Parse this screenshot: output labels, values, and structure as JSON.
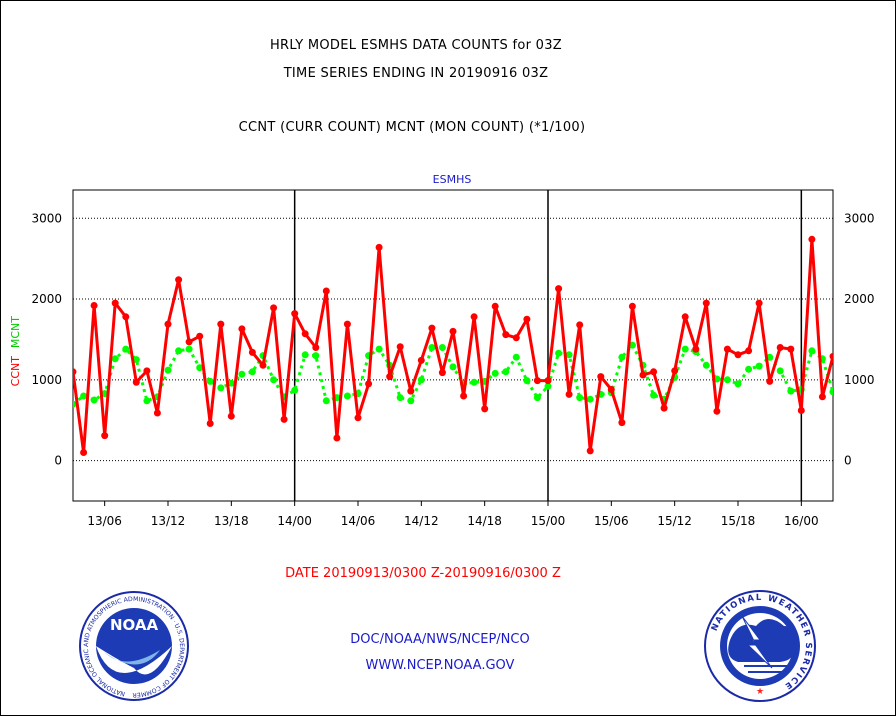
{
  "titles": {
    "line1": "HRLY MODEL ESMHS DATA COUNTS for 03Z",
    "line2": "TIME SERIES ENDING IN 20190916 03Z",
    "line3": "CCNT (CURR COUNT) MCNT (MON COUNT) (*1/100)"
  },
  "series_header": "ESMHS",
  "ylabels": {
    "ccnt": "CCNT",
    "mcnt": "MCNT"
  },
  "date_range": "DATE 20190913/0300 Z-20190916/0300 Z",
  "credits": {
    "line1": "DOC/NOAA/NWS/NCEP/NCO",
    "line2": "WWW.NCEP.NOAA.GOV"
  },
  "logos": {
    "left": {
      "name": "NOAA",
      "ring_text": "NATIONAL OCEANIC AND ATMOSPHERIC ADMINISTRATION · U.S. DEPARTMENT OF COMMERCE"
    },
    "right": {
      "ring_text": "NATIONAL WEATHER SERVICE"
    }
  },
  "colors": {
    "ccnt": "#ff0000",
    "mcnt": "#00ff00",
    "grid": "#000000",
    "text_blue": "#1a1acc"
  },
  "chart_data": {
    "type": "line",
    "title": "ESMHS",
    "xlabel": "DATE 20190913/0300 Z-20190916/0300 Z",
    "ylabel": "CCNT  MCNT",
    "x_start_hour": 3,
    "x_step_hours": 1,
    "xlim": [
      3,
      75
    ],
    "ylim": [
      -500,
      3350
    ],
    "yticks": [
      0,
      1000,
      2000,
      3000
    ],
    "xticks": [
      {
        "hour": 6,
        "label": "13/06"
      },
      {
        "hour": 12,
        "label": "13/12"
      },
      {
        "hour": 18,
        "label": "13/18"
      },
      {
        "hour": 24,
        "label": "14/00"
      },
      {
        "hour": 30,
        "label": "14/06"
      },
      {
        "hour": 36,
        "label": "14/12"
      },
      {
        "hour": 42,
        "label": "14/18"
      },
      {
        "hour": 48,
        "label": "15/00"
      },
      {
        "hour": 54,
        "label": "15/06"
      },
      {
        "hour": 60,
        "label": "15/12"
      },
      {
        "hour": 66,
        "label": "15/18"
      },
      {
        "hour": 72,
        "label": "16/00"
      }
    ],
    "day_boundaries": [
      24,
      48,
      72
    ],
    "grid": "horizontal dotted",
    "series": [
      {
        "name": "CCNT",
        "color": "#ff0000",
        "values": [
          1100,
          100,
          1920,
          310,
          1950,
          1780,
          970,
          1110,
          590,
          1690,
          2240,
          1470,
          1540,
          460,
          1690,
          550,
          1630,
          1340,
          1180,
          1890,
          510,
          1820,
          1570,
          1400,
          2100,
          280,
          1690,
          530,
          950,
          2640,
          1040,
          1410,
          860,
          1240,
          1640,
          1090,
          1600,
          800,
          1780,
          640,
          1910,
          1560,
          1520,
          1750,
          990,
          990,
          2130,
          820,
          1680,
          120,
          1040,
          880,
          470,
          1910,
          1060,
          1100,
          650,
          1110,
          1780,
          1380,
          1950,
          610,
          1380,
          1310,
          1360,
          1950,
          980,
          1400,
          1380,
          620,
          2740,
          790,
          1290
        ]
      },
      {
        "name": "MCNT",
        "color": "#00ff00",
        "values": [
          700,
          800,
          750,
          830,
          1260,
          1380,
          1250,
          740,
          790,
          1120,
          1360,
          1380,
          1150,
          980,
          900,
          960,
          1070,
          1100,
          1300,
          1000,
          790,
          870,
          1310,
          1300,
          740,
          780,
          800,
          830,
          1300,
          1380,
          1180,
          780,
          740,
          1000,
          1400,
          1400,
          1160,
          950,
          970,
          980,
          1080,
          1100,
          1280,
          990,
          780,
          920,
          1330,
          1310,
          780,
          760,
          820,
          840,
          1280,
          1430,
          1180,
          810,
          760,
          1030,
          1380,
          1350,
          1180,
          1010,
          1000,
          950,
          1130,
          1170,
          1280,
          1110,
          860,
          880,
          1360,
          1260,
          850
        ]
      }
    ]
  }
}
